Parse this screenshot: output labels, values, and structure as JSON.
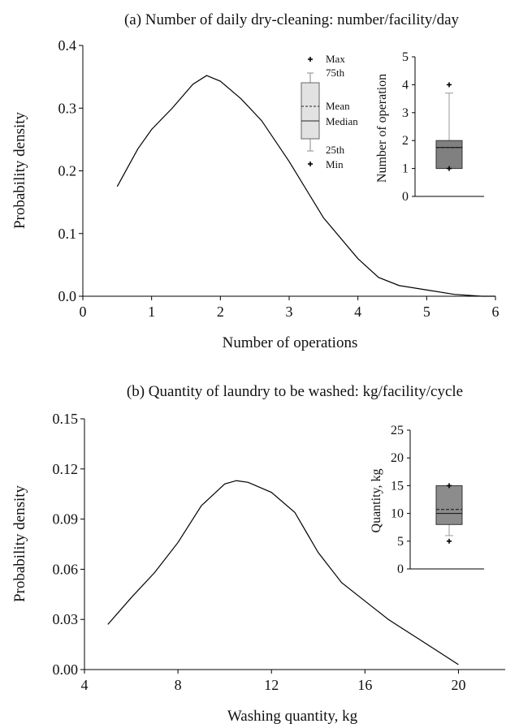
{
  "chart_data": [
    {
      "type": "line",
      "title": "(a) Number of daily dry-cleaning: number/facility/day",
      "xlabel": "Number of operations",
      "ylabel": "Probability density",
      "xlim": [
        0,
        6
      ],
      "ylim": [
        0,
        0.4
      ],
      "xticks": [
        "0",
        "1",
        "2",
        "3",
        "4",
        "5",
        "6"
      ],
      "yticks": [
        "0.0",
        "0.1",
        "0.2",
        "0.3",
        "0.4"
      ],
      "x": [
        0.5,
        0.8,
        1.0,
        1.3,
        1.6,
        1.8,
        2.0,
        2.3,
        2.6,
        3.0,
        3.5,
        4.0,
        4.3,
        4.6,
        5.0,
        5.4,
        5.8,
        6.0
      ],
      "y": [
        0.175,
        0.235,
        0.266,
        0.3,
        0.338,
        0.352,
        0.343,
        0.315,
        0.28,
        0.215,
        0.125,
        0.06,
        0.03,
        0.017,
        0.01,
        0.003,
        0.0,
        0.0
      ],
      "legend": {
        "max": "Max",
        "p75": "75th",
        "mean": "Mean",
        "median": "Median",
        "p25": "25th",
        "min": "Min"
      },
      "inset": {
        "type": "box",
        "ylabel": "Number of operation",
        "ylim": [
          0,
          5
        ],
        "yticks": [
          "0",
          "1",
          "2",
          "3",
          "4",
          "5"
        ],
        "min": 1.0,
        "q1": 1.0,
        "median": 1.75,
        "mean": 1.75,
        "q3": 2.0,
        "whisker_high": 3.7,
        "max": 4.0,
        "fill": "#808080"
      }
    },
    {
      "type": "line",
      "title": "(b) Quantity of laundry to be washed: kg/facility/cycle",
      "xlabel": "Washing quantity, kg",
      "ylabel": "Probability density",
      "xlim": [
        4,
        22
      ],
      "ylim": [
        0,
        0.15
      ],
      "xticks": [
        "4",
        "8",
        "12",
        "16",
        "20"
      ],
      "yticks": [
        "0.00",
        "0.03",
        "0.06",
        "0.09",
        "0.12",
        "0.15"
      ],
      "x": [
        5,
        6,
        7,
        8,
        9,
        10,
        10.5,
        11,
        12,
        13,
        14,
        15,
        16,
        17,
        18,
        19,
        20
      ],
      "y": [
        0.027,
        0.043,
        0.058,
        0.076,
        0.098,
        0.111,
        0.113,
        0.112,
        0.106,
        0.094,
        0.07,
        0.052,
        0.041,
        0.03,
        0.021,
        0.012,
        0.003
      ],
      "inset": {
        "type": "box",
        "ylabel": "Quantity, kg",
        "ylim": [
          0,
          25
        ],
        "yticks": [
          "0",
          "5",
          "10",
          "15",
          "20",
          "25"
        ],
        "min": 5.0,
        "whisker_low": 6.0,
        "q1": 8.0,
        "median": 10.0,
        "mean": 10.7,
        "q3": 15.0,
        "max": 15.0,
        "fill": "#8c8c8c"
      }
    }
  ]
}
